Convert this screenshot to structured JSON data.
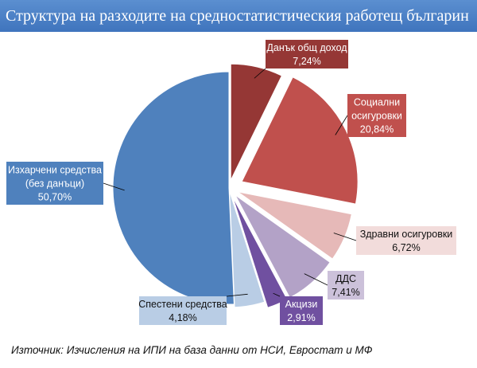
{
  "page": {
    "title": "Структура на разходите на средностатистическия работещ българин",
    "source": "Източник: Изчисления на ИПИ на база данни от НСИ, Евростат и МФ"
  },
  "chart_data": {
    "type": "pie",
    "title": "Структура на разходите на средностатистическия работещ българин",
    "slices": [
      {
        "label_lines": [
          "Данък общ доход"
        ],
        "value_text": "7,24%",
        "value": 7.24,
        "color": "#953735",
        "label_bg": "#953735",
        "label_fg": "#ffffff"
      },
      {
        "label_lines": [
          "Социални",
          "осигуровки"
        ],
        "value_text": "20,84%",
        "value": 20.84,
        "color": "#c0504d",
        "label_bg": "#c0504d",
        "label_fg": "#ffffff"
      },
      {
        "label_lines": [
          "Здравни осигуровки"
        ],
        "value_text": "6,72%",
        "value": 6.72,
        "color": "#e6b9b8",
        "label_bg": "#f2dcdb",
        "label_fg": "#111111"
      },
      {
        "label_lines": [
          "ДДС"
        ],
        "value_text": "7,41%",
        "value": 7.41,
        "color": "#b3a2c7",
        "label_bg": "#ccc1da",
        "label_fg": "#111111"
      },
      {
        "label_lines": [
          "Акцизи"
        ],
        "value_text": "2,91%",
        "value": 2.91,
        "color": "#7050a0",
        "label_bg": "#7050a0",
        "label_fg": "#ffffff"
      },
      {
        "label_lines": [
          "Спестени средства"
        ],
        "value_text": "4,18%",
        "value": 4.18,
        "color": "#b9cde5",
        "label_bg": "#b9cde5",
        "label_fg": "#111111"
      },
      {
        "label_lines": [
          "Изхарчени средства",
          "(без данъци)"
        ],
        "value_text": "50,70%",
        "value": 50.7,
        "color": "#4f81bd",
        "label_bg": "#4f81bd",
        "label_fg": "#ffffff"
      }
    ],
    "legend": "none",
    "data_labels": "callouts"
  }
}
